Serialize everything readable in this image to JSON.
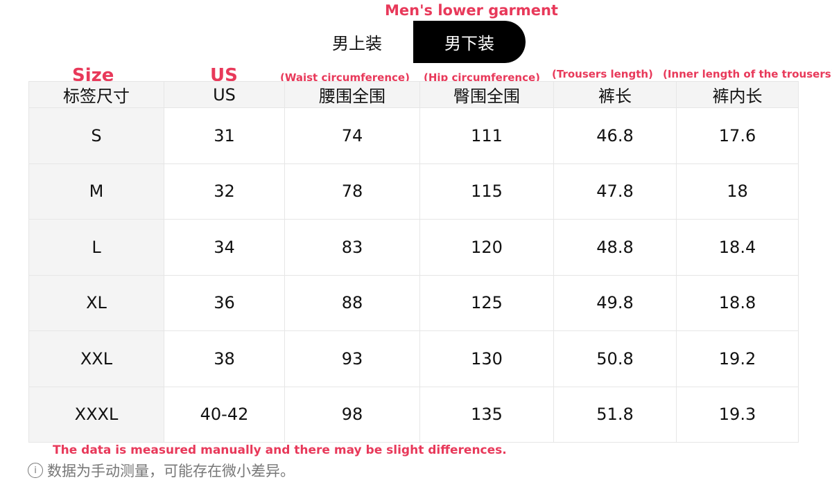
{
  "annotations": {
    "title": "Men's lower garment",
    "size": "Size",
    "us": "US",
    "waist": "(Waist circumference)",
    "hip": "(Hip circumference)",
    "length": "(Trousers length)",
    "inner": "(Inner length of the trousers)",
    "note_en": "The data is measured manually and there may be slight differences."
  },
  "tabs": [
    {
      "label": "男上装",
      "active": false
    },
    {
      "label": "男下装",
      "active": true
    }
  ],
  "table": {
    "headers": [
      "标签尺寸",
      "US",
      "腰围全围",
      "臀围全围",
      "裤长",
      "裤内长"
    ],
    "rows": [
      [
        "S",
        "31",
        "74",
        "111",
        "46.8",
        "17.6"
      ],
      [
        "M",
        "32",
        "78",
        "115",
        "47.8",
        "18"
      ],
      [
        "L",
        "34",
        "83",
        "120",
        "48.8",
        "18.4"
      ],
      [
        "XL",
        "36",
        "88",
        "125",
        "49.8",
        "18.8"
      ],
      [
        "XXL",
        "38",
        "93",
        "130",
        "50.8",
        "19.2"
      ],
      [
        "XXXL",
        "40-42",
        "98",
        "135",
        "51.8",
        "19.3"
      ]
    ]
  },
  "footer": {
    "info_icon": "info-circle-icon",
    "info_glyph": "i",
    "note_cn": "数据为手动测量，可能存在微小差异。"
  },
  "colors": {
    "accent": "#e8395a",
    "active_tab": "#000000"
  }
}
